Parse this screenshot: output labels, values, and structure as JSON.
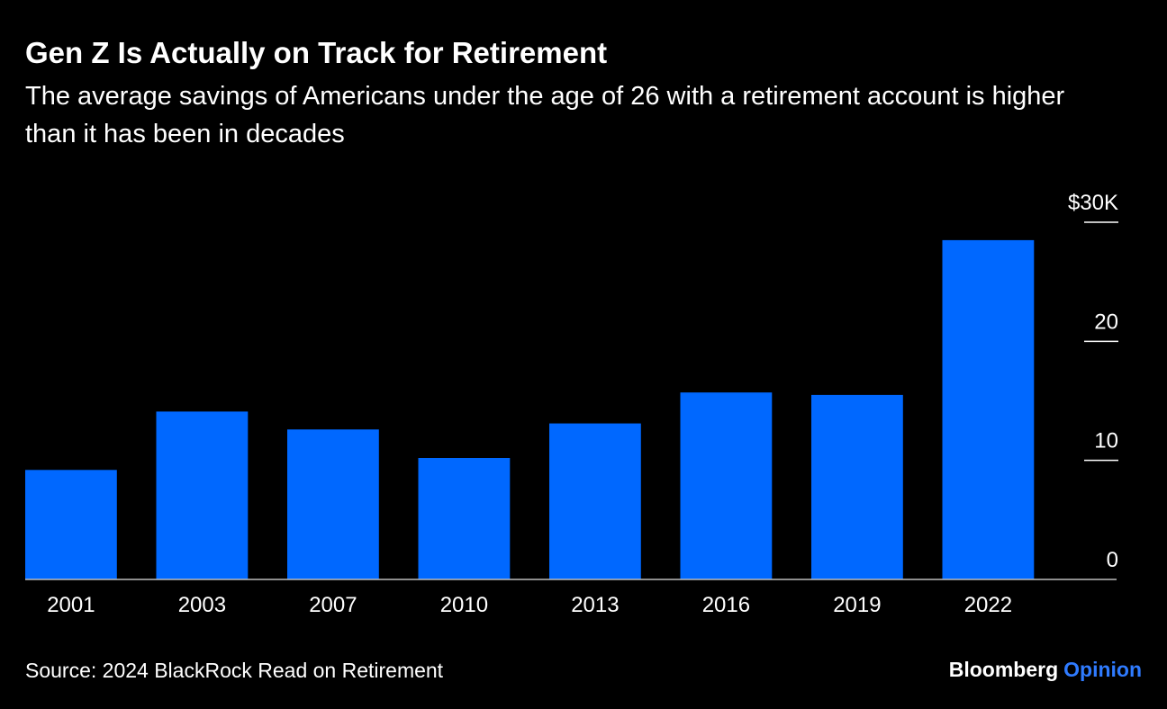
{
  "title": "Gen Z Is Actually on Track for Retirement",
  "subtitle": "The average savings of Americans under the age of 26 with a retirement account is higher than it has been in decades",
  "source": "Source: 2024 BlackRock Read on Retirement",
  "brand": {
    "name": "Bloomberg",
    "section": "Opinion"
  },
  "colors": {
    "background": "#000000",
    "bar": "#0068ff",
    "brand_accent": "#2f7bff",
    "text": "#ffffff"
  },
  "chart_data": {
    "type": "bar",
    "categories": [
      "2001",
      "2003",
      "2007",
      "2010",
      "2013",
      "2016",
      "2019",
      "2022"
    ],
    "values": [
      9.2,
      14.1,
      12.6,
      10.2,
      13.1,
      15.7,
      15.5,
      28.5
    ],
    "ylim": [
      0,
      30
    ],
    "yticks": [
      {
        "value": 0,
        "label": "0"
      },
      {
        "value": 10,
        "label": "10"
      },
      {
        "value": 20,
        "label": "20"
      },
      {
        "value": 30,
        "label": "$30K"
      }
    ],
    "axis_position": "right",
    "grid": false
  }
}
